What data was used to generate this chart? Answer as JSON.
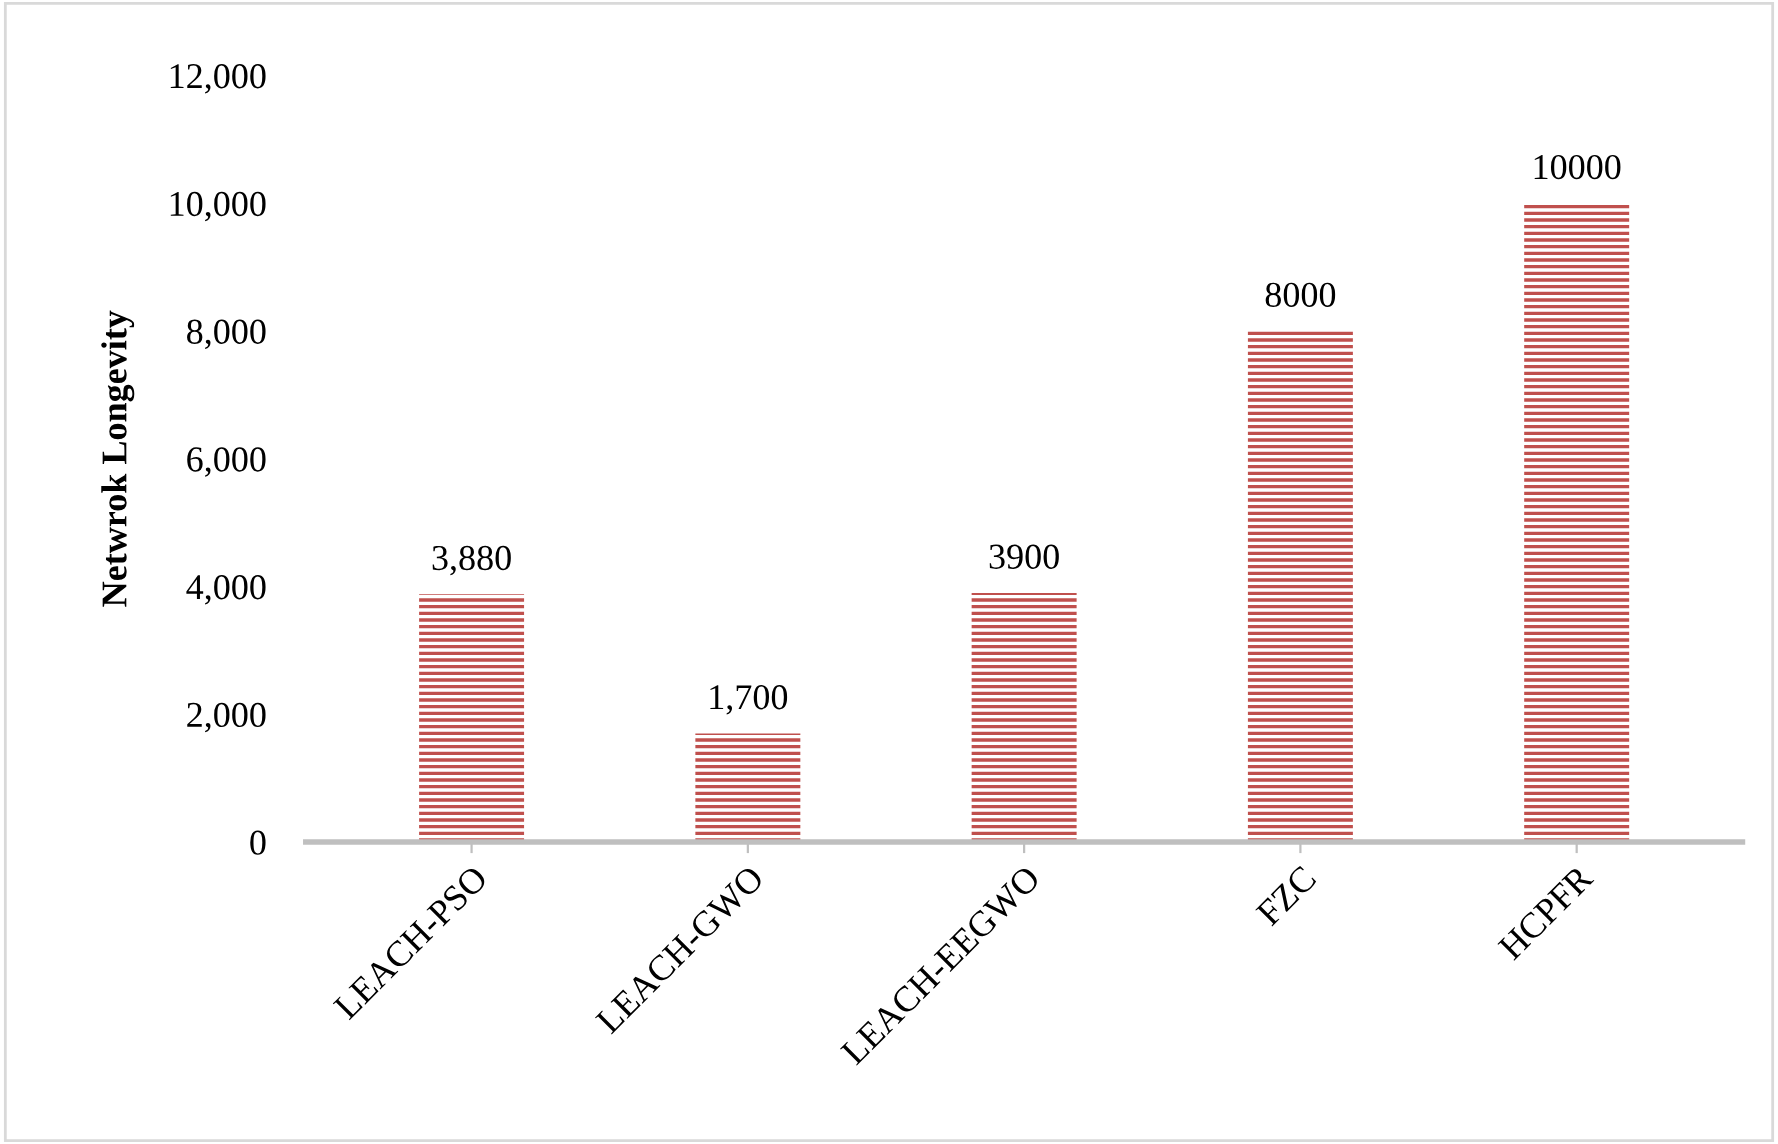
{
  "chart_data": {
    "type": "bar",
    "ylabel": "Netwrok Longevity",
    "categories": [
      "LEACH-PSO",
      "LEACH-GWO",
      "LEACH-EEGWO",
      "FZC",
      "HCPFR"
    ],
    "values": [
      3880,
      1700,
      3900,
      8000,
      10000
    ],
    "value_labels": [
      "3,880",
      "1,700",
      "3900",
      "8000",
      "10000"
    ],
    "color": "#c0504d",
    "ylim": [
      0,
      12000
    ],
    "yticks": [
      {
        "value": 0,
        "label": "0"
      },
      {
        "value": 2000,
        "label": "2,000"
      },
      {
        "value": 4000,
        "label": "4,000"
      },
      {
        "value": 6000,
        "label": "6,000"
      },
      {
        "value": 8000,
        "label": "8,000"
      },
      {
        "value": 10000,
        "label": "10,000"
      },
      {
        "value": 12000,
        "label": "12,000"
      }
    ],
    "grid": false,
    "legend": false
  }
}
